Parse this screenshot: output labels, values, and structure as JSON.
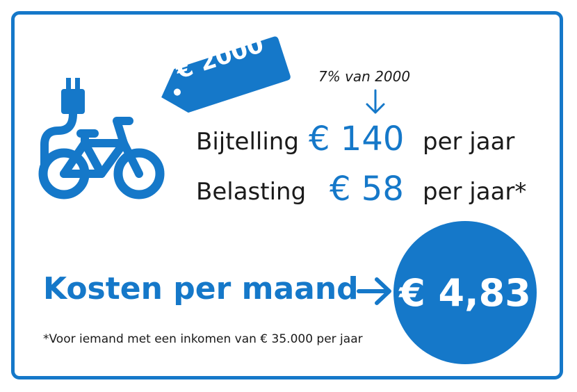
{
  "price_tag": "€ 2000",
  "note": "7% van 2000",
  "bijtelling": {
    "label": "Bijtelling",
    "amount": "€ 140",
    "unit": "per jaar"
  },
  "belasting": {
    "label": "Belasting",
    "amount": "€ 58",
    "unit": "per jaar*"
  },
  "kosten": {
    "label": "Kosten per maand",
    "amount": "€ 4,83"
  },
  "footnote": "*Voor iemand met een inkomen van € 35.000 per jaar",
  "colors": {
    "accent": "#1578c9",
    "text": "#1a1a1a"
  },
  "icons": [
    "e-bike-icon",
    "price-tag-icon",
    "arrow-down-icon",
    "arrow-right-icon"
  ]
}
